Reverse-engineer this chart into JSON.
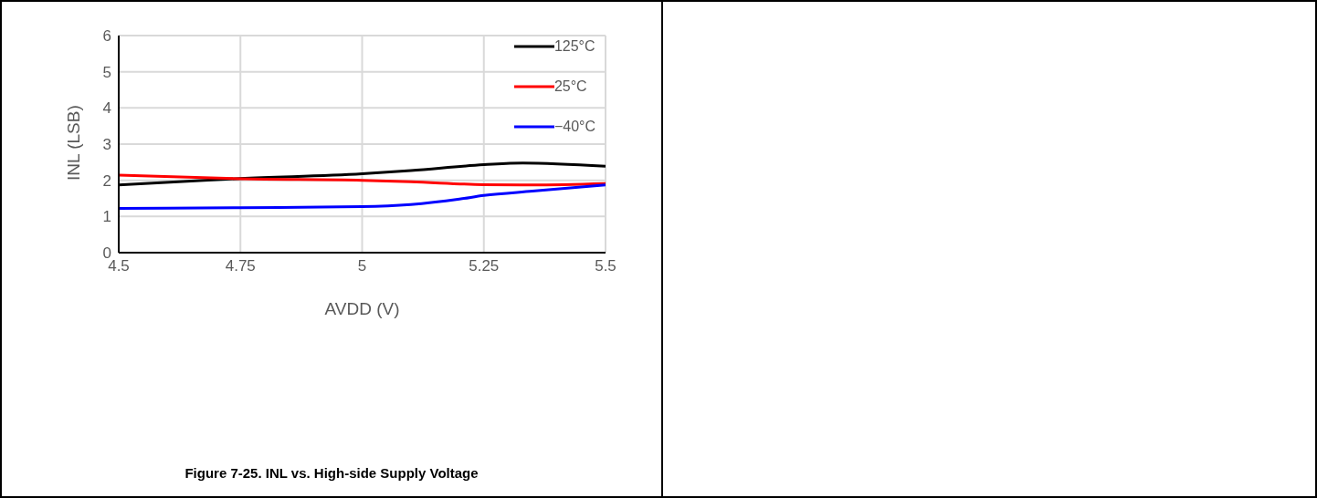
{
  "chart_data": {
    "type": "line",
    "title": "Figure 7-25. INL vs. High-side Supply Voltage",
    "xlabel": "AVDD (V)",
    "ylabel": "INL (LSB)",
    "xlim": [
      4.5,
      5.5
    ],
    "xticks": [
      4.5,
      4.75,
      5,
      5.25,
      5.5
    ],
    "ylim": [
      0,
      6
    ],
    "yticks": [
      0,
      1,
      2,
      3,
      4,
      5,
      6
    ],
    "grid": true,
    "legend": "top right",
    "series": [
      {
        "name": "125°C",
        "color": "#000000",
        "x": [
          4.5,
          4.75,
          5,
          5.1,
          5.25,
          5.33,
          5.5
        ],
        "values": [
          1.87,
          2.05,
          2.18,
          2.27,
          2.43,
          2.48,
          2.39
        ]
      },
      {
        "name": "25°C",
        "color": "#ff0000",
        "x": [
          4.5,
          4.75,
          5,
          5.1,
          5.25,
          5.35,
          5.5
        ],
        "values": [
          2.14,
          2.04,
          2.0,
          1.96,
          1.88,
          1.87,
          1.91
        ]
      },
      {
        "name": "−40°C",
        "color": "#0000ff",
        "x": [
          4.5,
          4.75,
          5,
          5.1,
          5.2,
          5.25,
          5.35,
          5.5
        ],
        "values": [
          1.22,
          1.24,
          1.27,
          1.33,
          1.48,
          1.58,
          1.7,
          1.87
        ]
      }
    ]
  }
}
